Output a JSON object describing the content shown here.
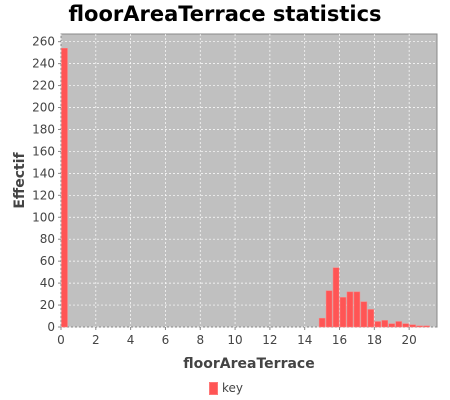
{
  "chart_data": {
    "type": "bar",
    "title": "floorAreaTerrace statistics",
    "xlabel": "floorAreaTerrace",
    "ylabel": "Effectif",
    "xlim": [
      0,
      21.6
    ],
    "ylim": [
      0,
      267
    ],
    "x_ticks": [
      0,
      2,
      4,
      6,
      8,
      10,
      12,
      14,
      16,
      18,
      20
    ],
    "y_ticks": [
      0,
      20,
      40,
      60,
      80,
      100,
      120,
      140,
      160,
      180,
      200,
      220,
      240,
      260
    ],
    "bin_width": 0.4,
    "bins": [
      {
        "x": 0.0,
        "value": 254
      },
      {
        "x": 14.8,
        "value": 8
      },
      {
        "x": 15.2,
        "value": 33
      },
      {
        "x": 15.6,
        "value": 54
      },
      {
        "x": 16.0,
        "value": 27
      },
      {
        "x": 16.4,
        "value": 32
      },
      {
        "x": 16.8,
        "value": 32
      },
      {
        "x": 17.2,
        "value": 23
      },
      {
        "x": 17.6,
        "value": 16
      },
      {
        "x": 18.0,
        "value": 5
      },
      {
        "x": 18.4,
        "value": 6
      },
      {
        "x": 18.8,
        "value": 3
      },
      {
        "x": 19.2,
        "value": 5
      },
      {
        "x": 19.6,
        "value": 3
      },
      {
        "x": 20.0,
        "value": 2
      },
      {
        "x": 20.4,
        "value": 1
      },
      {
        "x": 20.8,
        "value": 1
      }
    ],
    "legend": {
      "label": "key",
      "placement": "bottom"
    },
    "grid": true,
    "colors": {
      "bar": "#ff5555",
      "plot_bg": "#c0c0c0",
      "grid": "#ffffff"
    }
  }
}
